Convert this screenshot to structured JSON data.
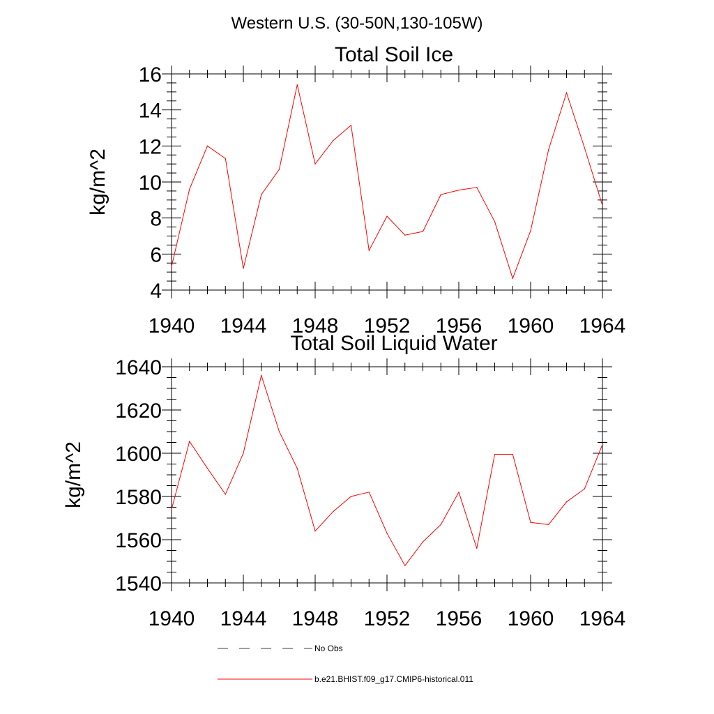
{
  "suptitle": "Western U.S. (30-50N,130-105W)",
  "chart_data": [
    {
      "type": "line",
      "title": "Total Soil Ice",
      "xlabel": "",
      "ylabel": "kg/m^2",
      "xlim": [
        1940,
        1964
      ],
      "ylim": [
        4,
        16
      ],
      "x_ticks": [
        "1940",
        "1944",
        "1948",
        "1952",
        "1956",
        "1960",
        "1964"
      ],
      "y_ticks": [
        "4",
        "6",
        "8",
        "10",
        "12",
        "14",
        "16"
      ],
      "series": [
        {
          "name": "b.e21.BHIST.f09_g17.CMIP6-historical.011",
          "color": "#ff0000",
          "x": [
            1940,
            1941,
            1942,
            1943,
            1944,
            1945,
            1946,
            1947,
            1948,
            1949,
            1950,
            1951,
            1952,
            1953,
            1954,
            1955,
            1956,
            1957,
            1958,
            1959,
            1960,
            1961,
            1962,
            1963,
            1964
          ],
          "y": [
            5.3,
            9.6,
            12.0,
            11.3,
            5.2,
            9.3,
            10.7,
            15.4,
            11.0,
            12.3,
            13.15,
            6.2,
            8.1,
            7.05,
            7.25,
            9.3,
            9.55,
            9.7,
            7.8,
            4.65,
            7.3,
            11.8,
            14.95,
            11.9,
            8.7
          ]
        }
      ]
    },
    {
      "type": "line",
      "title": "Total Soil Liquid Water",
      "xlabel": "",
      "ylabel": "kg/m^2",
      "xlim": [
        1940,
        1964
      ],
      "ylim": [
        1540,
        1640
      ],
      "x_ticks": [
        "1940",
        "1944",
        "1948",
        "1952",
        "1956",
        "1960",
        "1964"
      ],
      "y_ticks": [
        "1540",
        "1560",
        "1580",
        "1600",
        "1620",
        "1640"
      ],
      "series": [
        {
          "name": "b.e21.BHIST.f09_g17.CMIP6-historical.011",
          "color": "#ff0000",
          "x": [
            1940,
            1941,
            1942,
            1943,
            1944,
            1945,
            1946,
            1947,
            1948,
            1949,
            1950,
            1951,
            1952,
            1953,
            1954,
            1955,
            1956,
            1957,
            1958,
            1959,
            1960,
            1961,
            1962,
            1963,
            1964
          ],
          "y": [
            1574,
            1605.5,
            1593,
            1581,
            1600,
            1636,
            1610,
            1593,
            1564,
            1573,
            1580,
            1582,
            1563,
            1548,
            1559,
            1567,
            1582,
            1556,
            1599.5,
            1599.5,
            1568,
            1567,
            1577.5,
            1583.5,
            1604
          ]
        }
      ]
    }
  ],
  "legend": [
    {
      "label": "No Obs",
      "style": "dashed",
      "color": "#3a3a5a"
    },
    {
      "label": "b.e21.BHIST.f09_g17.CMIP6-historical.011",
      "style": "solid",
      "color": "#ff0000"
    }
  ]
}
